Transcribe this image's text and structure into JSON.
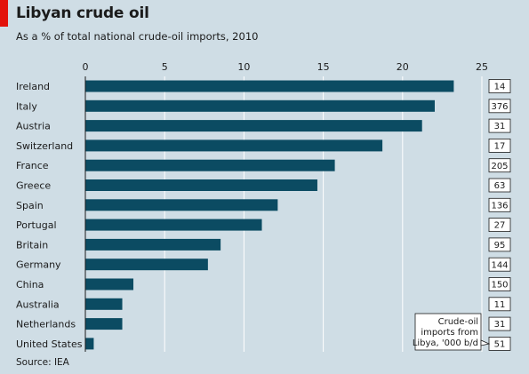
{
  "title": "Libyan crude oil",
  "subtitle": "As a % of total national crude-oil imports, 2010",
  "source": "Source: IEA",
  "colors": {
    "bar": "#0b4b62",
    "background": "#cfdde5",
    "accent": "#e3120b",
    "grid": "#ffffff"
  },
  "chart_data": {
    "type": "bar",
    "orientation": "horizontal",
    "title": "Libyan crude oil",
    "subtitle": "As a % of total national crude-oil imports, 2010",
    "categories": [
      "Ireland",
      "Italy",
      "Austria",
      "Switzerland",
      "France",
      "Greece",
      "Spain",
      "Portugal",
      "Britain",
      "Germany",
      "China",
      "Australia",
      "Netherlands",
      "United States"
    ],
    "values": [
      23.2,
      22.0,
      21.2,
      18.7,
      15.7,
      14.6,
      12.1,
      11.1,
      8.5,
      7.7,
      3.0,
      2.3,
      2.3,
      0.5
    ],
    "xlim": [
      0,
      25
    ],
    "xticks": [
      0,
      5,
      10,
      15,
      20,
      25
    ],
    "grid": true,
    "side_values": {
      "label": "Crude-oil imports from Libya, '000 b/d",
      "label_lines": [
        "Crude-oil",
        "imports from",
        "Libya, '000 b/d"
      ],
      "values": [
        14,
        376,
        31,
        17,
        205,
        63,
        136,
        27,
        95,
        144,
        150,
        11,
        31,
        51
      ]
    }
  }
}
